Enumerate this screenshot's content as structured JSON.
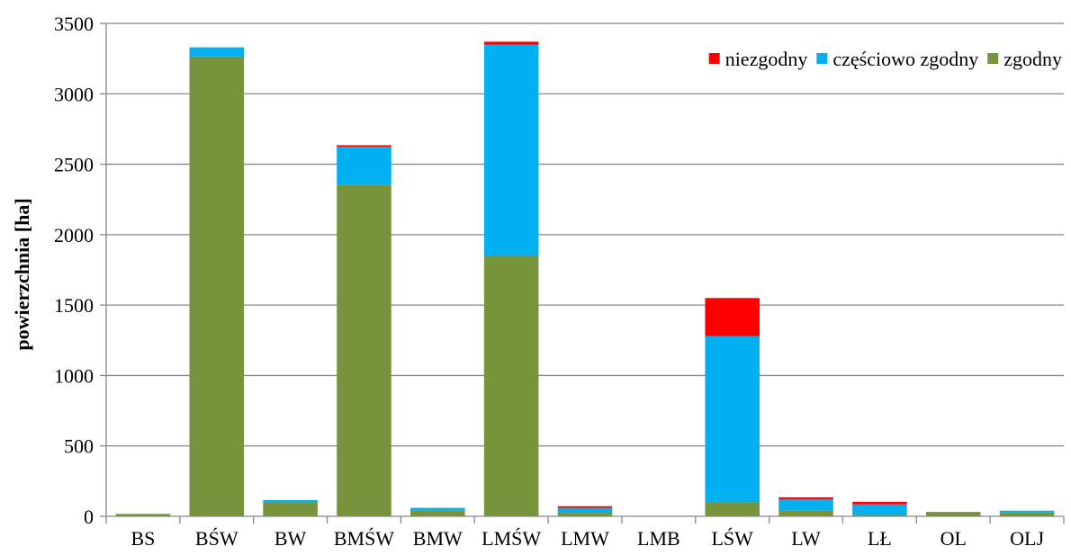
{
  "chart_data": {
    "type": "bar",
    "stacked": true,
    "title": "",
    "xlabel": "",
    "ylabel": "powierzchnia [ha]",
    "ylim": [
      0,
      3500
    ],
    "yticks": [
      0,
      500,
      1000,
      1500,
      2000,
      2500,
      3000,
      3500
    ],
    "grid": "horizontal",
    "legend_position": "top-right",
    "categories": [
      "BS",
      "BŚW",
      "BW",
      "BMŚW",
      "BMW",
      "LMŚW",
      "LMW",
      "LMB",
      "LŚW",
      "LW",
      "LŁ",
      "OL",
      "OLJ"
    ],
    "series": [
      {
        "name": "zgodny",
        "color": "#77933c",
        "values": [
          15,
          3265,
          100,
          2355,
          40,
          1850,
          25,
          0,
          100,
          40,
          10,
          30,
          30
        ]
      },
      {
        "name": "częściowo zgodny",
        "color": "#00b0f0",
        "values": [
          3,
          65,
          15,
          270,
          20,
          1500,
          35,
          0,
          1180,
          80,
          75,
          2,
          10
        ]
      },
      {
        "name": "niezgodny",
        "color": "#ff0000",
        "values": [
          0,
          0,
          0,
          10,
          0,
          20,
          12,
          0,
          270,
          15,
          18,
          0,
          0
        ]
      }
    ],
    "legend_order": [
      "niezgodny",
      "częściowo zgodny",
      "zgodny"
    ]
  }
}
